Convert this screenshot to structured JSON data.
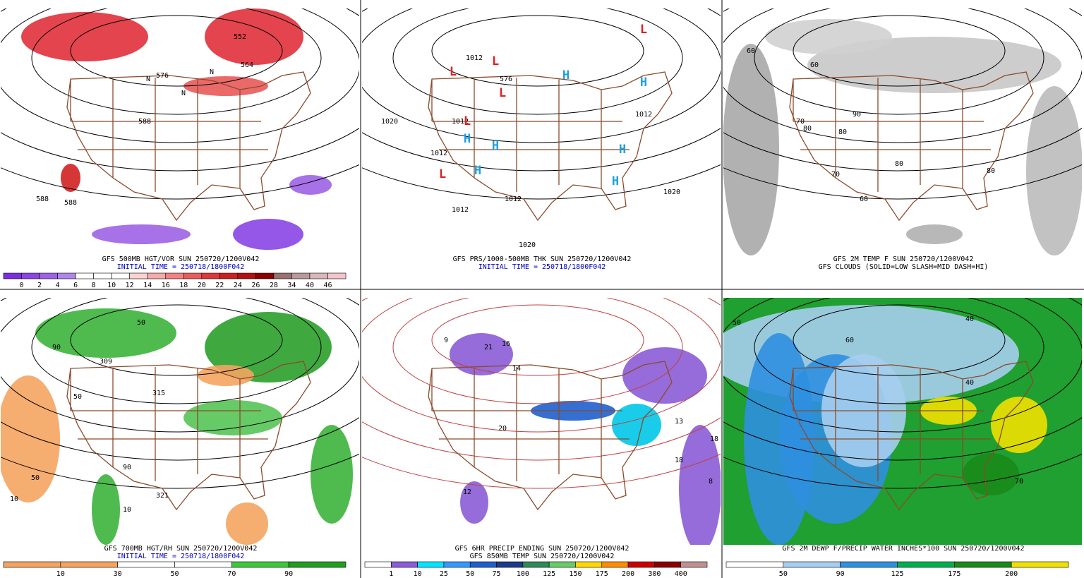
{
  "panels": [
    {
      "title": "GFS 500MB HGT/VOR SUN 250720/1200V042",
      "subtitle": "INITIAL TIME = 250718/1800F042",
      "subtitle_color": "#0000cc",
      "labels": [
        "552",
        "564",
        "576",
        "588",
        "588",
        "588",
        "N",
        "N",
        "N"
      ],
      "colorbar": {
        "labels": [
          "0",
          "2",
          "4",
          "6",
          "8",
          "10",
          "12",
          "14",
          "16",
          "18",
          "20",
          "22",
          "24",
          "26",
          "28",
          "34",
          "40",
          "46"
        ],
        "colors": [
          "#7b2ee0",
          "#8c45e4",
          "#9d62e6",
          "#b185ea",
          "#ffffff",
          "#ffffff",
          "#ffffff",
          "#fad2d2",
          "#f6aaaa",
          "#f08282",
          "#ea5c5c",
          "#e03838",
          "#cc2020",
          "#b31010",
          "#8b0000",
          "#9a7070",
          "#b89a9a",
          "#d8b8bc",
          "#f2c4cc"
        ]
      }
    },
    {
      "title": "GFS PRS/1000-500MB THK SUN 250720/1200V042",
      "subtitle": "INITIAL TIME = 250718/1800F042",
      "subtitle_color": "#0000cc",
      "labels": [
        "1012",
        "1012",
        "1012",
        "1020",
        "1012",
        "1012",
        "1020",
        "1020",
        "576",
        "1012",
        "L",
        "L",
        "L",
        "L",
        "L",
        "L",
        "H",
        "H",
        "H",
        "H",
        "H",
        "H",
        "H"
      ]
    },
    {
      "title": "GFS 2M TEMP F SUN 250720/1200V042",
      "subtitle": "GFS CLOUDS (SOLID=LOW SLASH=MID DASH=HI)",
      "subtitle_color": "#000000",
      "labels": [
        "60",
        "70",
        "80",
        "80",
        "60",
        "90",
        "80",
        "70",
        "80",
        "60"
      ]
    },
    {
      "title": "GFS 700MB HGT/RH SUN 250720/1200V042",
      "subtitle": "INITIAL TIME = 250718/1800F042",
      "subtitle_color": "#0000cc",
      "labels": [
        "50",
        "90",
        "50",
        "309",
        "315",
        "321",
        "10",
        "50",
        "90",
        "10"
      ],
      "colorbar": {
        "labels": [
          "10",
          "30",
          "50",
          "70",
          "90"
        ],
        "colors": [
          "#f4a460",
          "#f4a460",
          "#ffffff",
          "#ffffff",
          "#3cc83c",
          "#1f9e1f"
        ]
      }
    },
    {
      "title": "GFS 6HR PRECIP ENDING SUN 250720/1200V042",
      "subtitle": "GFS 850MB TEMP SUN 250720/1200V042",
      "subtitle_color": "#000000",
      "labels": [
        "9",
        "21",
        "16",
        "14",
        "13",
        "18",
        "18",
        "12",
        "8",
        "20"
      ],
      "colorbar": {
        "labels": [
          "1",
          "10",
          "25",
          "50",
          "75",
          "100",
          "125",
          "150",
          "175",
          "200",
          "300",
          "400"
        ],
        "colors": [
          "#ffffff",
          "#8a5cd6",
          "#00e5ff",
          "#3399ff",
          "#1e5fcc",
          "#1a3a8a",
          "#2e8b57",
          "#66cc66",
          "#ffd700",
          "#ff8c00",
          "#cc0000",
          "#8b0000",
          "#c09090"
        ]
      }
    },
    {
      "title": "GFS 2M DEWP F/PRECIP WATER INCHES*100 SUN 250720/1200V042",
      "labels": [
        "50",
        "40",
        "60",
        "40",
        "70"
      ],
      "colorbar": {
        "labels": [
          "50",
          "90",
          "125",
          "175",
          "200"
        ],
        "colors": [
          "#ffffff",
          "#a6cef0",
          "#2f8fe0",
          "#00b050",
          "#1a8a1a",
          "#f0e000"
        ]
      }
    }
  ]
}
